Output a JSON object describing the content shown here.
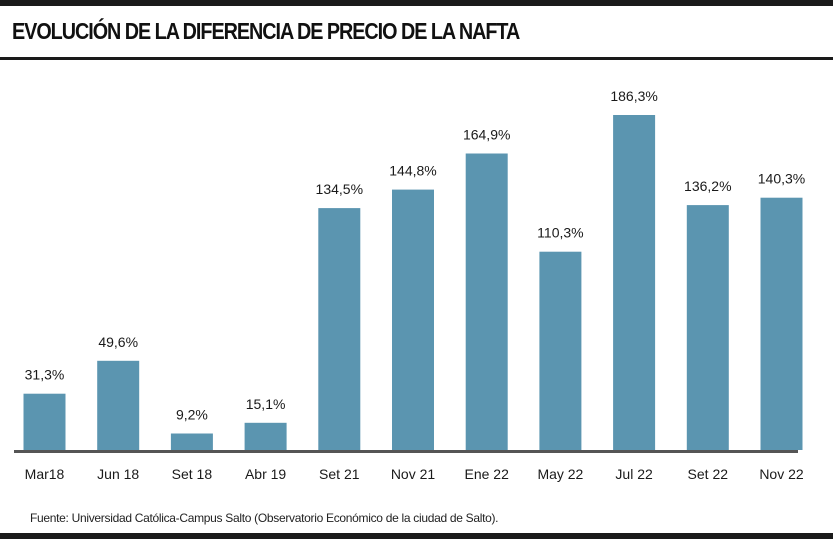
{
  "title": "EVOLUCIÓN DE LA DIFERENCIA DE PRECIO DE LA NAFTA",
  "source": "Fuente: Universidad Católica-Campus Salto (Observatorio Económico de la ciudad de Salto).",
  "colors": {
    "bar": "#5b95b0",
    "baseline": "#555555",
    "frame": "#1a1a1a"
  },
  "chart_data": {
    "type": "bar",
    "categories": [
      "Mar18",
      "Jun 18",
      "Set 18",
      "Abr 19",
      "Set 21",
      "Nov 21",
      "Ene 22",
      "May 22",
      "Jul 22",
      "Set 22",
      "Nov 22"
    ],
    "values": [
      31.3,
      49.6,
      9.2,
      15.1,
      134.5,
      144.8,
      164.9,
      110.3,
      186.3,
      136.2,
      140.3
    ],
    "value_labels": [
      "31,3%",
      "49,6%",
      "9,2%",
      "15,1%",
      "134,5%",
      "144,8%",
      "164,9%",
      "110,3%",
      "186,3%",
      "136,2%",
      "140,3%"
    ],
    "title": "EVOLUCIÓN DE LA DIFERENCIA DE PRECIO DE LA NAFTA",
    "xlabel": "",
    "ylabel": "",
    "ylim": [
      0,
      186.3
    ],
    "grid": false,
    "legend": "none"
  }
}
